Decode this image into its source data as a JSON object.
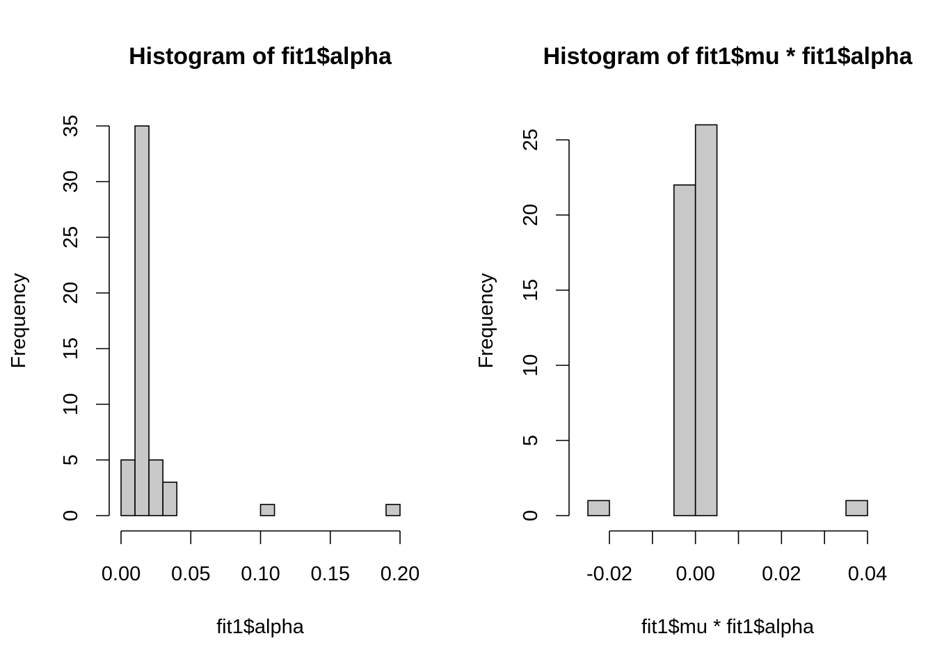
{
  "chart_data": [
    {
      "type": "bar",
      "title": "Histogram of fit1$alpha",
      "xlabel": "fit1$alpha",
      "ylabel": "Frequency",
      "bin_edges": [
        0.0,
        0.01,
        0.02,
        0.03,
        0.04,
        0.05,
        0.06,
        0.07,
        0.08,
        0.09,
        0.1,
        0.11,
        0.12,
        0.13,
        0.14,
        0.15,
        0.16,
        0.17,
        0.18,
        0.19,
        0.2
      ],
      "values": [
        5,
        35,
        5,
        3,
        0,
        0,
        0,
        0,
        0,
        0,
        1,
        0,
        0,
        0,
        0,
        0,
        0,
        0,
        0,
        1
      ],
      "xlim": [
        0.0,
        0.2
      ],
      "ylim": [
        0,
        35
      ],
      "x_ticks": [
        0.0,
        0.05,
        0.1,
        0.15,
        0.2
      ],
      "x_tick_labels": [
        "0.00",
        "0.05",
        "0.10",
        "0.15",
        "0.20"
      ],
      "y_ticks": [
        0,
        5,
        10,
        15,
        20,
        25,
        30,
        35
      ],
      "y_tick_labels": [
        "0",
        "5",
        "10",
        "15",
        "20",
        "25",
        "30",
        "35"
      ],
      "grid": false,
      "bar_color": "#c8c8c8"
    },
    {
      "type": "bar",
      "title": "Histogram of fit1$mu * fit1$alpha",
      "xlabel": "fit1$mu * fit1$alpha",
      "ylabel": "Frequency",
      "bin_edges": [
        -0.025,
        -0.02,
        -0.015,
        -0.01,
        -0.005,
        0.0,
        0.005,
        0.01,
        0.015,
        0.02,
        0.025,
        0.03,
        0.035,
        0.04
      ],
      "values": [
        1,
        0,
        0,
        0,
        22,
        26,
        0,
        0,
        0,
        0,
        0,
        0,
        1
      ],
      "xlim": [
        -0.02,
        0.04
      ],
      "ylim": [
        0,
        26
      ],
      "x_ticks": [
        -0.02,
        -0.01,
        0.0,
        0.01,
        0.02,
        0.03,
        0.04
      ],
      "x_tick_labels": [
        "-0.02",
        "",
        "0.00",
        "",
        "0.02",
        "",
        "0.04"
      ],
      "y_ticks": [
        0,
        5,
        10,
        15,
        20,
        25
      ],
      "y_tick_labels": [
        "0",
        "5",
        "10",
        "15",
        "20",
        "25"
      ],
      "grid": false,
      "bar_color": "#c8c8c8"
    }
  ]
}
